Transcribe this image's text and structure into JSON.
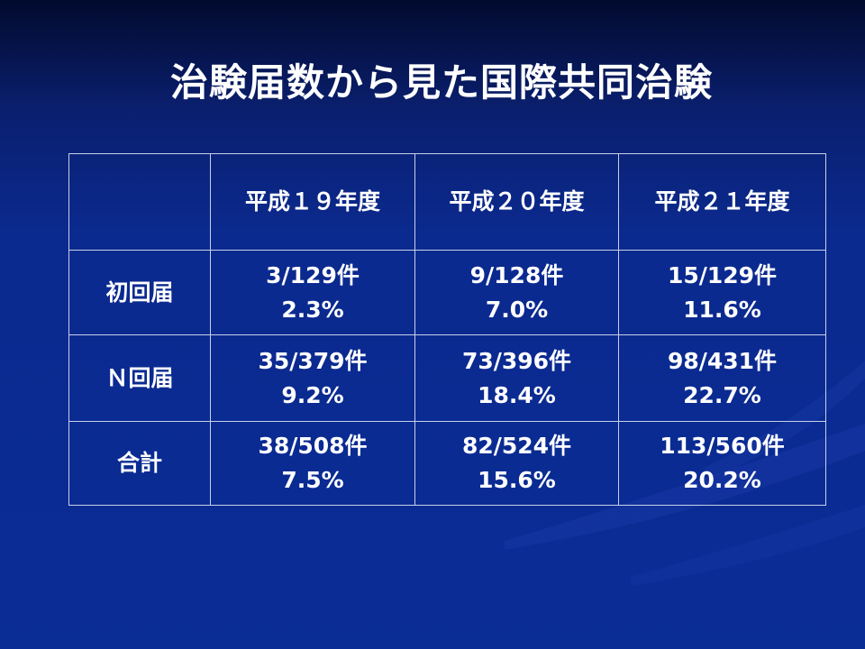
{
  "slide": {
    "title": "治験届数から見た国際共同治験"
  },
  "table": {
    "corner": "",
    "headers": [
      "平成１９年度",
      "平成２０年度",
      "平成２１年度"
    ],
    "rows": [
      {
        "label": "初回届",
        "cells": [
          {
            "count": "3/129件",
            "pct": "2.3%"
          },
          {
            "count": "9/128件",
            "pct": "7.0%"
          },
          {
            "count": "15/129件",
            "pct": "11.6%"
          }
        ]
      },
      {
        "label": "Ｎ回届",
        "cells": [
          {
            "count": "35/379件",
            "pct": "9.2%"
          },
          {
            "count": "73/396件",
            "pct": "18.4%"
          },
          {
            "count": "98/431件",
            "pct": "22.7%"
          }
        ]
      },
      {
        "label": "合計",
        "cells": [
          {
            "count": "38/508件",
            "pct": "7.5%"
          },
          {
            "count": "82/524件",
            "pct": "15.6%"
          },
          {
            "count": "113/560件",
            "pct": "20.2%"
          }
        ]
      }
    ]
  },
  "colors": {
    "background_top": "#020a2e",
    "background_bottom": "#0a2c95",
    "text": "#ffffff",
    "grid": "#c8d0e8"
  }
}
